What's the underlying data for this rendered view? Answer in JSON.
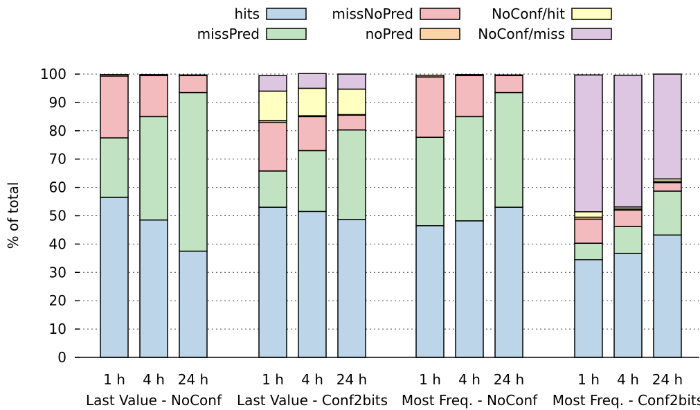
{
  "chart_data": {
    "type": "bar",
    "stacked": true,
    "ylabel": "% of total",
    "ylim": [
      0,
      100
    ],
    "yticks": [
      "0",
      "10",
      "20",
      "30",
      "40",
      "50",
      "60",
      "70",
      "80",
      "90",
      "100"
    ],
    "grid": "horizontal dotted",
    "legend_position": "top",
    "groups": [
      {
        "label": "Last Value - NoConf",
        "categories": [
          "1 h",
          "4 h",
          "24 h"
        ]
      },
      {
        "label": "Last Value - Conf2bits",
        "categories": [
          "1 h",
          "4 h",
          "24 h"
        ]
      },
      {
        "label": "Most Freq. - NoConf",
        "categories": [
          "1 h",
          "4 h",
          "24 h"
        ]
      },
      {
        "label": "Most Freq. - Conf2bits",
        "categories": [
          "1 h",
          "4 h",
          "24 h"
        ]
      }
    ],
    "series": [
      {
        "name": "hits",
        "color": "#bcd5e9",
        "values": [
          56.5,
          48.5,
          37.5,
          53.0,
          51.5,
          48.7,
          46.5,
          48.2,
          53.0,
          34.5,
          36.7,
          43.2
        ]
      },
      {
        "name": "missPred",
        "color": "#c1e3c1",
        "values": [
          21.0,
          36.5,
          56.0,
          12.8,
          21.5,
          31.6,
          31.2,
          36.8,
          40.5,
          5.8,
          9.5,
          15.5
        ]
      },
      {
        "name": "missNoPred",
        "color": "#f4bbbe",
        "values": [
          21.8,
          14.5,
          6.0,
          17.2,
          12.0,
          5.2,
          21.3,
          14.5,
          6.0,
          8.5,
          5.8,
          3.0
        ]
      },
      {
        "name": "noPred",
        "color": "#fdd3a8",
        "values": [
          0.5,
          0.3,
          0.2,
          0.6,
          0.3,
          0.2,
          0.6,
          0.3,
          0.2,
          0.7,
          0.4,
          0.5
        ]
      },
      {
        "name": "NoConf/hit",
        "color": "#feffc0",
        "values": [
          0,
          0,
          0,
          10.4,
          9.7,
          9.0,
          0,
          0,
          0,
          1.9,
          0.7,
          0.8
        ]
      },
      {
        "name": "NoConf/miss",
        "color": "#dcc6e1",
        "values": [
          0,
          0,
          0,
          5.5,
          5.2,
          5.3,
          0,
          0,
          0,
          48.3,
          46.5,
          37.0
        ]
      }
    ],
    "legend_rows": [
      [
        "hits",
        "missNoPred",
        "NoConf/hit"
      ],
      [
        "missPred",
        "noPred",
        "NoConf/miss"
      ]
    ]
  }
}
